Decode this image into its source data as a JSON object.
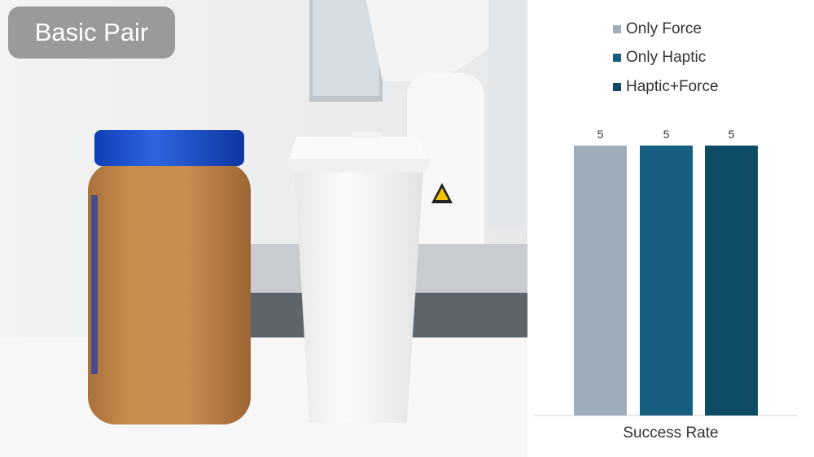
{
  "badge": {
    "label": "Basic Pair"
  },
  "chart_data": {
    "type": "bar",
    "categories": [
      "Success Rate"
    ],
    "series": [
      {
        "name": "Only Force",
        "values": [
          5
        ],
        "color": "#9fadb9"
      },
      {
        "name": "Only Haptic",
        "values": [
          5
        ],
        "color": "#165f81"
      },
      {
        "name": "Haptic+Force",
        "values": [
          5
        ],
        "color": "#0e4b65"
      }
    ],
    "data_labels": [
      "5",
      "5",
      "5"
    ],
    "xlabel": "Success Rate",
    "ylabel": "",
    "ylim": [
      0,
      5
    ],
    "grid": false,
    "legend_position": "top"
  }
}
